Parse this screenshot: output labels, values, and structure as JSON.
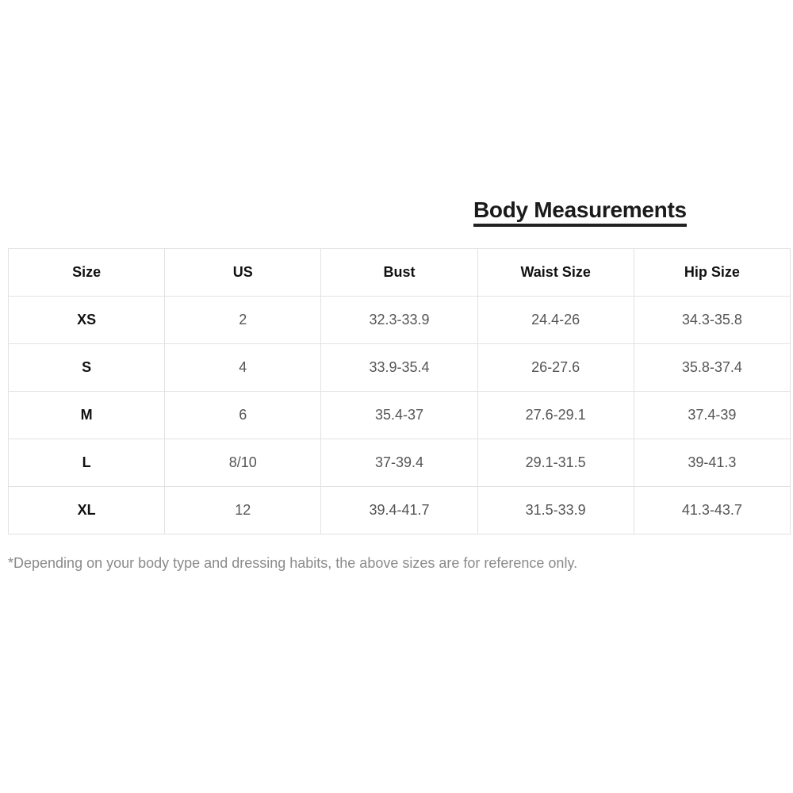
{
  "title": "Body Measurements",
  "table": {
    "headers": [
      "Size",
      "US",
      "Bust",
      "Waist Size",
      "Hip Size"
    ],
    "rows": [
      [
        "XS",
        "2",
        "32.3-33.9",
        "24.4-26",
        "34.3-35.8"
      ],
      [
        "S",
        "4",
        "33.9-35.4",
        "26-27.6",
        "35.8-37.4"
      ],
      [
        "M",
        "6",
        "35.4-37",
        "27.6-29.1",
        "37.4-39"
      ],
      [
        "L",
        "8/10",
        "37-39.4",
        "29.1-31.5",
        "39-41.3"
      ],
      [
        "XL",
        "12",
        "39.4-41.7",
        "31.5-33.9",
        "41.3-43.7"
      ]
    ]
  },
  "note": "*Depending on your body type and dressing habits, the above sizes are for reference only."
}
